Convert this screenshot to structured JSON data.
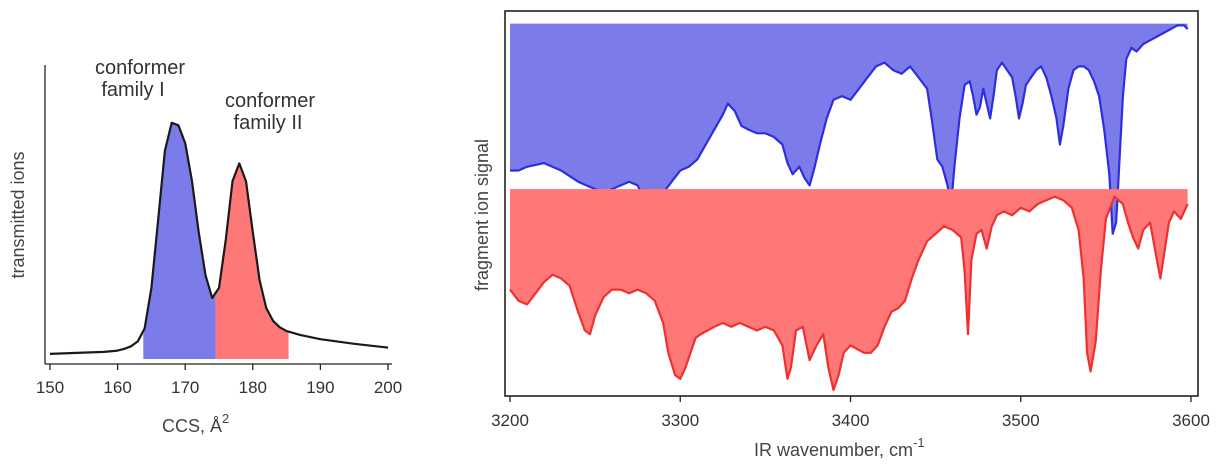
{
  "colors": {
    "blue": "#2e2edf",
    "red": "#f03030",
    "blue_fill": "#7b7bea",
    "red_fill": "#ff7878"
  },
  "chart_data": [
    {
      "type": "area",
      "xlabel": "CCS, Å",
      "xlabel_sup": "2",
      "ylabel": "transmitted ions",
      "xlim": [
        150,
        200
      ],
      "ylim": [
        0,
        1
      ],
      "xticks": [
        "150",
        "160",
        "170",
        "180",
        "190",
        "200"
      ],
      "annotations": [
        {
          "lines": [
            "conformer",
            "family I"
          ],
          "x": 168,
          "y": 0.93
        },
        {
          "lines": [
            "conformer",
            "family II"
          ],
          "x": 178,
          "y": 0.77
        }
      ],
      "fill_regions": [
        {
          "name": "conformer family I",
          "from": 163.8,
          "to": 174.5,
          "color": "blue"
        },
        {
          "name": "conformer family II",
          "from": 174.5,
          "to": 185.3,
          "color": "red"
        }
      ],
      "series": [
        {
          "x": [
            150,
            152,
            155,
            158,
            160,
            161,
            162,
            163,
            164,
            165,
            166,
            167,
            168,
            169,
            170,
            171,
            172,
            173,
            174,
            175,
            176,
            177,
            178,
            179,
            180,
            181,
            182,
            183,
            184,
            185,
            187,
            190,
            195,
            200
          ],
          "y": [
            0.02,
            0.022,
            0.025,
            0.028,
            0.033,
            0.04,
            0.05,
            0.07,
            0.12,
            0.28,
            0.55,
            0.82,
            0.93,
            0.92,
            0.85,
            0.7,
            0.5,
            0.33,
            0.24,
            0.28,
            0.47,
            0.7,
            0.77,
            0.7,
            0.5,
            0.31,
            0.2,
            0.15,
            0.125,
            0.11,
            0.095,
            0.078,
            0.06,
            0.045
          ]
        }
      ]
    },
    {
      "type": "area",
      "xlabel": "IR wavenumber, cm",
      "xlabel_sup": "-1",
      "ylabel": "fragment ion signal",
      "xlim": [
        3200,
        3600
      ],
      "ylim": [
        0,
        1
      ],
      "xticks": [
        "3200",
        "3300",
        "3400",
        "3500",
        "3600"
      ],
      "series": [
        {
          "color": "blue",
          "baseline": 0.985,
          "x": [
            3200,
            3205,
            3210,
            3220,
            3230,
            3240,
            3250,
            3255,
            3260,
            3265,
            3270,
            3275,
            3280,
            3283,
            3287,
            3290,
            3295,
            3300,
            3305,
            3310,
            3315,
            3320,
            3325,
            3328,
            3332,
            3336,
            3340,
            3345,
            3350,
            3355,
            3360,
            3363,
            3366,
            3370,
            3373,
            3376,
            3379,
            3382,
            3386,
            3390,
            3395,
            3400,
            3405,
            3410,
            3415,
            3420,
            3425,
            3430,
            3435,
            3440,
            3445,
            3448,
            3451,
            3454,
            3457,
            3459,
            3461,
            3464,
            3467,
            3470,
            3472,
            3474,
            3476,
            3478,
            3480,
            3482,
            3484,
            3486,
            3489,
            3492,
            3495,
            3497,
            3499,
            3501,
            3503,
            3506,
            3509,
            3512,
            3515,
            3518,
            3521,
            3523,
            3525,
            3528,
            3531,
            3534,
            3537,
            3540,
            3543,
            3546,
            3549,
            3552,
            3554,
            3556,
            3557,
            3558,
            3560,
            3562,
            3565,
            3568,
            3572,
            3576,
            3580,
            3584,
            3588,
            3592,
            3596,
            3598
          ],
          "y": [
            0.59,
            0.59,
            0.6,
            0.61,
            0.59,
            0.56,
            0.54,
            0.53,
            0.54,
            0.55,
            0.56,
            0.55,
            0.5,
            0.48,
            0.49,
            0.53,
            0.56,
            0.59,
            0.6,
            0.62,
            0.66,
            0.7,
            0.74,
            0.77,
            0.75,
            0.71,
            0.7,
            0.69,
            0.69,
            0.68,
            0.66,
            0.61,
            0.58,
            0.6,
            0.57,
            0.55,
            0.6,
            0.66,
            0.73,
            0.78,
            0.79,
            0.78,
            0.81,
            0.84,
            0.87,
            0.88,
            0.86,
            0.85,
            0.87,
            0.84,
            0.81,
            0.72,
            0.62,
            0.6,
            0.55,
            0.49,
            0.6,
            0.73,
            0.82,
            0.83,
            0.79,
            0.74,
            0.76,
            0.81,
            0.77,
            0.73,
            0.79,
            0.86,
            0.88,
            0.86,
            0.84,
            0.79,
            0.73,
            0.77,
            0.82,
            0.84,
            0.86,
            0.87,
            0.84,
            0.79,
            0.73,
            0.66,
            0.71,
            0.81,
            0.86,
            0.87,
            0.87,
            0.86,
            0.83,
            0.79,
            0.7,
            0.58,
            0.42,
            0.45,
            0.53,
            0.62,
            0.79,
            0.89,
            0.92,
            0.91,
            0.93,
            0.94,
            0.95,
            0.96,
            0.97,
            0.98,
            0.98,
            0.97
          ]
        },
        {
          "color": "red",
          "baseline": 0.54,
          "x": [
            3200,
            3205,
            3210,
            3215,
            3220,
            3225,
            3230,
            3235,
            3240,
            3244,
            3247,
            3250,
            3255,
            3260,
            3265,
            3270,
            3275,
            3280,
            3285,
            3290,
            3293,
            3297,
            3300,
            3303,
            3306,
            3309,
            3312,
            3316,
            3320,
            3325,
            3330,
            3335,
            3340,
            3345,
            3350,
            3355,
            3360,
            3363,
            3365,
            3368,
            3372,
            3376,
            3380,
            3384,
            3387,
            3390,
            3393,
            3396,
            3400,
            3404,
            3408,
            3412,
            3416,
            3420,
            3424,
            3428,
            3432,
            3436,
            3440,
            3445,
            3450,
            3455,
            3460,
            3465,
            3467,
            3469,
            3471,
            3474,
            3477,
            3480,
            3483,
            3486,
            3490,
            3495,
            3500,
            3505,
            3510,
            3515,
            3520,
            3525,
            3530,
            3534,
            3537,
            3539,
            3541,
            3544,
            3547,
            3550,
            3555,
            3560,
            3563,
            3566,
            3569,
            3572,
            3576,
            3580,
            3582,
            3584,
            3587,
            3590,
            3594,
            3598
          ],
          "y": [
            0.27,
            0.24,
            0.23,
            0.26,
            0.29,
            0.31,
            0.3,
            0.28,
            0.21,
            0.16,
            0.15,
            0.2,
            0.25,
            0.27,
            0.27,
            0.26,
            0.27,
            0.26,
            0.24,
            0.18,
            0.1,
            0.04,
            0.03,
            0.06,
            0.1,
            0.14,
            0.15,
            0.16,
            0.17,
            0.18,
            0.17,
            0.18,
            0.17,
            0.16,
            0.17,
            0.16,
            0.12,
            0.03,
            0.06,
            0.16,
            0.17,
            0.08,
            0.12,
            0.15,
            0.06,
            0.0,
            0.04,
            0.1,
            0.12,
            0.11,
            0.1,
            0.1,
            0.12,
            0.17,
            0.21,
            0.22,
            0.24,
            0.3,
            0.35,
            0.4,
            0.42,
            0.44,
            0.43,
            0.41,
            0.32,
            0.15,
            0.35,
            0.42,
            0.43,
            0.38,
            0.44,
            0.47,
            0.48,
            0.47,
            0.49,
            0.48,
            0.5,
            0.51,
            0.52,
            0.51,
            0.49,
            0.43,
            0.3,
            0.1,
            0.05,
            0.13,
            0.32,
            0.46,
            0.52,
            0.5,
            0.45,
            0.41,
            0.38,
            0.43,
            0.45,
            0.35,
            0.3,
            0.36,
            0.45,
            0.48,
            0.46,
            0.5
          ]
        }
      ]
    }
  ]
}
